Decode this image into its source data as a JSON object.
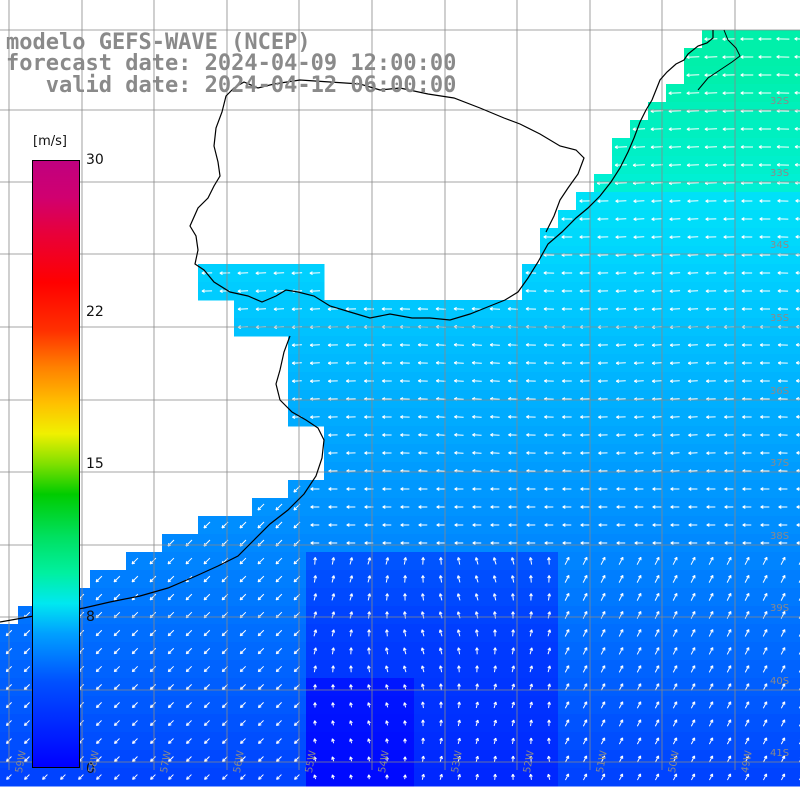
{
  "title": {
    "line1": "modelo GEFS-WAVE (NCEP)",
    "line2": "forecast date: 2024-04-09 12:00:00",
    "line3": "   valid date: 2024-04-12 06:00:00"
  },
  "colorbar": {
    "units": "[m/s]",
    "ticks": [
      "30",
      "22",
      "15",
      "8",
      "0"
    ],
    "tick_values": [
      30,
      22,
      15,
      8,
      0
    ],
    "min": 0,
    "max": 30
  },
  "lat_labels": [
    "32S",
    "33S",
    "34S",
    "35S",
    "36S",
    "37S",
    "38S",
    "39S",
    "40S",
    "41S"
  ],
  "lon_labels": [
    "59W",
    "58W",
    "57W",
    "56W",
    "55W",
    "54W",
    "53W",
    "52W",
    "51W",
    "50W",
    "49W"
  ],
  "colors": {
    "land": "#ffffff",
    "grid": "#888888",
    "coast": "#000000",
    "arrow": "#ffffff",
    "label_gray": "#8a8a8a"
  }
}
